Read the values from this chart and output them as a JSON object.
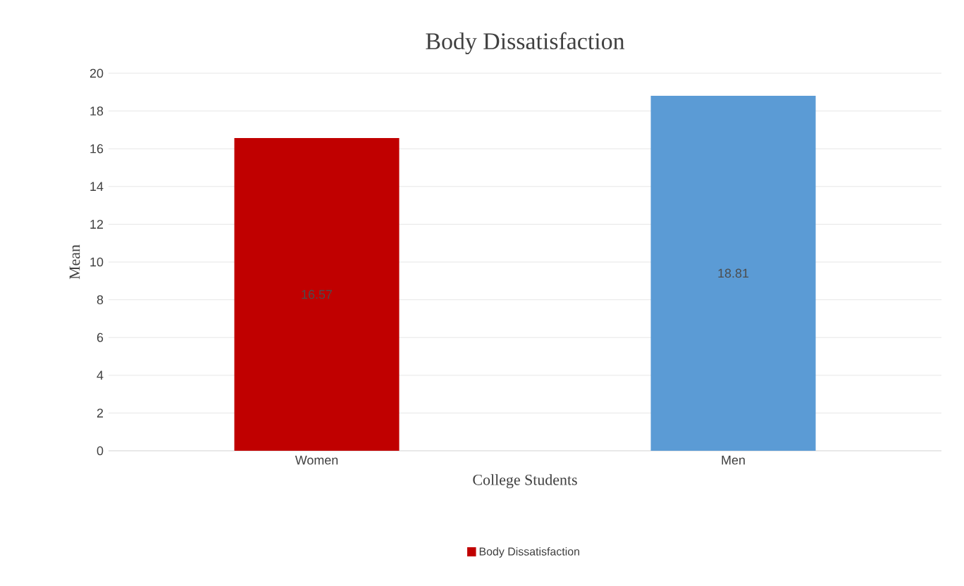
{
  "chart_data": {
    "type": "bar",
    "title": "Body Dissatisfaction",
    "xlabel": "College Students",
    "ylabel": "Mean",
    "categories": [
      "Women",
      "Men"
    ],
    "series": [
      {
        "name": "Body Dissatisfaction",
        "colors": [
          "#c00000",
          "#5b9bd5"
        ],
        "values": [
          16.57,
          18.81
        ]
      }
    ],
    "ylim": [
      0,
      20
    ],
    "yticks": [
      0,
      2,
      4,
      6,
      8,
      10,
      12,
      14,
      16,
      18,
      20
    ],
    "grid": "y",
    "legend": "bottom",
    "data_labels": true
  }
}
